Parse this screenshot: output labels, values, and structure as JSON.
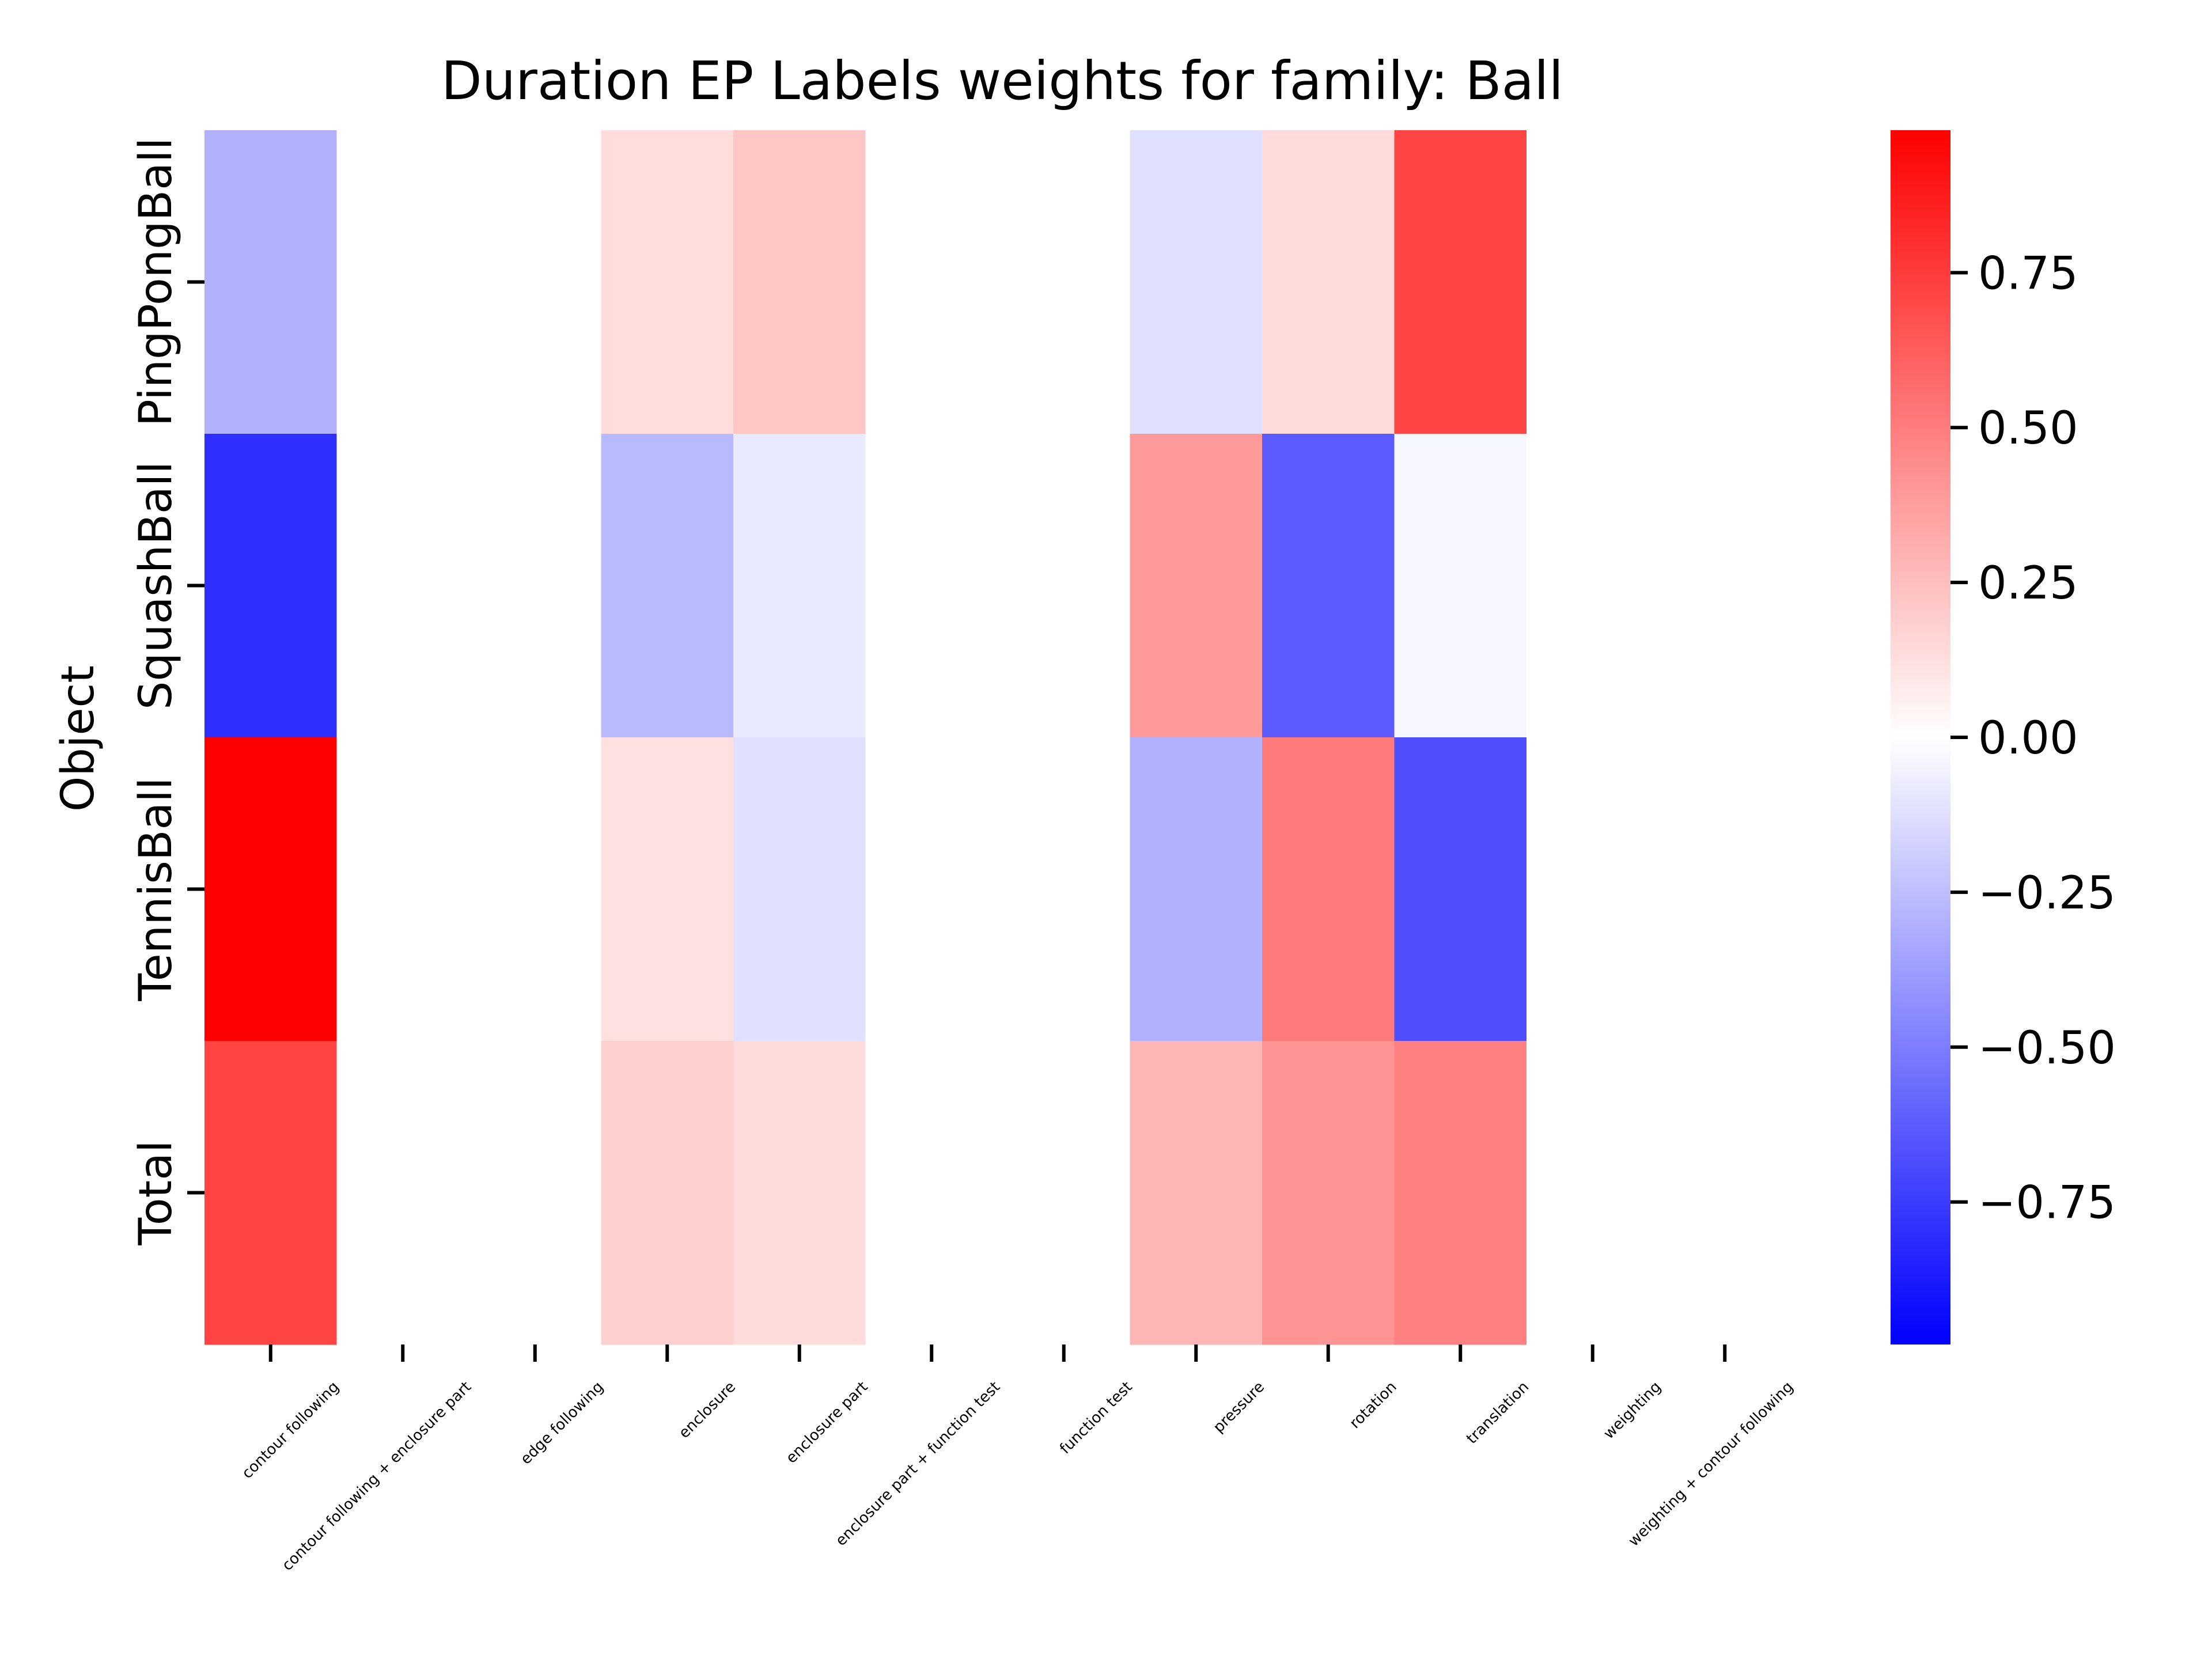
{
  "chart_data": {
    "type": "heatmap",
    "title": "Duration EP Labels weights for family: Ball",
    "xlabel": "",
    "ylabel": "Object",
    "x_categories": [
      "contour following",
      "contour following + enclosure part",
      "edge following",
      "enclosure",
      "enclosure part",
      "enclosure part + function test",
      "function test",
      "pressure",
      "rotation",
      "translation",
      "weighting",
      "weighting + contour following"
    ],
    "y_categories": [
      "PingPongBall",
      "SquashBall",
      "TennisBall",
      "Total"
    ],
    "values": [
      [
        -0.3,
        0.0,
        0.0,
        0.13,
        0.22,
        0.0,
        0.0,
        -0.12,
        0.14,
        0.72,
        0.0,
        0.0
      ],
      [
        -0.8,
        0.0,
        0.0,
        -0.27,
        -0.08,
        0.0,
        0.0,
        0.39,
        -0.63,
        -0.03,
        0.0,
        0.0
      ],
      [
        1.0,
        0.0,
        0.0,
        0.12,
        -0.12,
        0.0,
        0.0,
        -0.3,
        0.51,
        -0.68,
        0.0,
        0.0
      ],
      [
        0.72,
        0.0,
        0.0,
        0.18,
        0.14,
        0.0,
        0.0,
        0.28,
        0.41,
        0.49,
        0.0,
        0.0
      ]
    ],
    "colormap": "bwr",
    "vmin": -0.98,
    "vmax": 0.98,
    "colorbar_ticks": [
      "0.75",
      "0.50",
      "0.25",
      "0.00",
      "−0.25",
      "−0.50",
      "−0.75"
    ],
    "colorbar_tick_values": [
      0.75,
      0.5,
      0.25,
      0.0,
      -0.25,
      -0.5,
      -0.75
    ],
    "grid": false,
    "legend": "colorbar-right",
    "colors": {
      "low": "#0000ff",
      "mid": "#ffffff",
      "high": "#ff0000"
    }
  }
}
